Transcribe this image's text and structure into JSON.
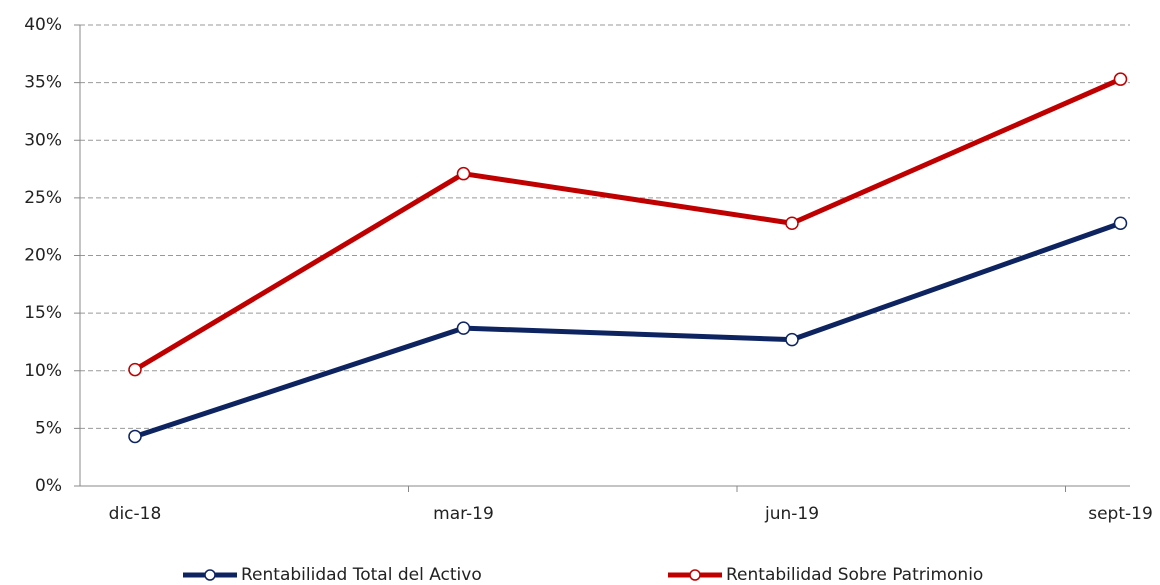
{
  "chart_data": {
    "type": "line",
    "categories": [
      "dic-18",
      "mar-19",
      "jun-19",
      "sept-19"
    ],
    "series": [
      {
        "name": "Rentabilidad Total del Activo",
        "color": "#0d2461",
        "values": [
          4.3,
          13.7,
          12.7,
          22.8
        ]
      },
      {
        "name": "Rentabilidad Sobre Patrimonio",
        "color": "#c00000",
        "values": [
          10.1,
          27.1,
          22.8,
          35.3
        ]
      }
    ],
    "ylim": [
      0,
      40
    ],
    "yticks": [
      {
        "value": 0,
        "label": "0%"
      },
      {
        "value": 5,
        "label": "5%"
      },
      {
        "value": 10,
        "label": "10%"
      },
      {
        "value": 15,
        "label": "15%"
      },
      {
        "value": 20,
        "label": "20%"
      },
      {
        "value": 25,
        "label": "25%"
      },
      {
        "value": 30,
        "label": "30%"
      },
      {
        "value": 35,
        "label": "35%"
      },
      {
        "value": 40,
        "label": "40%"
      }
    ],
    "grid": true,
    "legend": "bottom"
  }
}
